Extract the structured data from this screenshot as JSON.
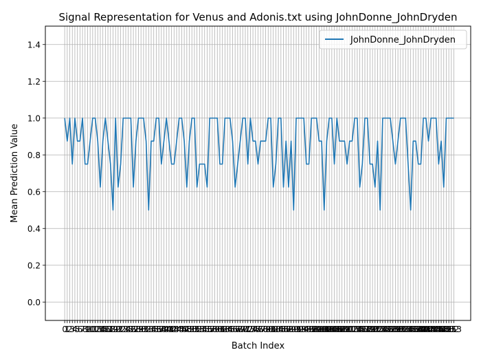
{
  "chart_data": {
    "type": "line",
    "title": "Signal Representation for Venus and Adonis.txt using JohnDonne_JohnDryden",
    "xlabel": "Batch Index",
    "ylabel": "Mean Prediction Value",
    "xlim": [
      -7.6,
      159.6
    ],
    "ylim": [
      -0.1,
      1.5
    ],
    "yticks": [
      0.0,
      0.2,
      0.4,
      0.6,
      0.8,
      1.0,
      1.2,
      1.4
    ],
    "ytick_labels": [
      "0.0",
      "0.2",
      "0.4",
      "0.6",
      "0.8",
      "1.0",
      "1.2",
      "1.4"
    ],
    "grid": true,
    "legend_position": "upper right",
    "series": [
      {
        "name": "JohnDonne_JohnDryden",
        "color": "#1f77b4",
        "values": [
          1.0,
          0.875,
          1.0,
          0.75,
          1.0,
          0.875,
          0.875,
          1.0,
          0.75,
          0.75,
          0.875,
          1.0,
          1.0,
          0.875,
          0.625,
          0.875,
          1.0,
          0.875,
          0.75,
          0.5,
          1.0,
          0.625,
          0.75,
          1.0,
          1.0,
          1.0,
          1.0,
          0.625,
          0.875,
          1.0,
          1.0,
          1.0,
          0.875,
          0.5,
          0.875,
          0.875,
          1.0,
          1.0,
          0.75,
          0.875,
          1.0,
          0.875,
          0.75,
          0.75,
          0.875,
          1.0,
          1.0,
          0.875,
          0.625,
          0.875,
          1.0,
          1.0,
          0.625,
          0.75,
          0.75,
          0.75,
          0.625,
          1.0,
          1.0,
          1.0,
          1.0,
          0.75,
          0.75,
          1.0,
          1.0,
          1.0,
          0.875,
          0.625,
          0.75,
          0.875,
          1.0,
          1.0,
          0.75,
          1.0,
          0.875,
          0.875,
          0.75,
          0.875,
          0.875,
          0.875,
          1.0,
          1.0,
          0.625,
          0.75,
          1.0,
          1.0,
          0.625,
          0.875,
          0.625,
          0.875,
          0.5,
          1.0,
          1.0,
          1.0,
          1.0,
          0.75,
          0.75,
          1.0,
          1.0,
          1.0,
          0.875,
          0.875,
          0.5,
          0.875,
          1.0,
          1.0,
          0.75,
          1.0,
          0.875,
          0.875,
          0.875,
          0.75,
          0.875,
          0.875,
          1.0,
          1.0,
          0.625,
          0.75,
          1.0,
          1.0,
          0.75,
          0.75,
          0.625,
          0.875,
          0.5,
          1.0,
          1.0,
          1.0,
          1.0,
          0.875,
          0.75,
          0.875,
          1.0,
          1.0,
          1.0,
          0.75,
          0.5,
          0.875,
          0.875,
          0.75,
          0.75,
          1.0,
          1.0,
          0.875,
          1.0,
          1.0,
          1.0,
          0.75,
          0.875,
          0.625,
          1.0,
          1.0,
          1.0,
          1.0
        ]
      }
    ]
  }
}
